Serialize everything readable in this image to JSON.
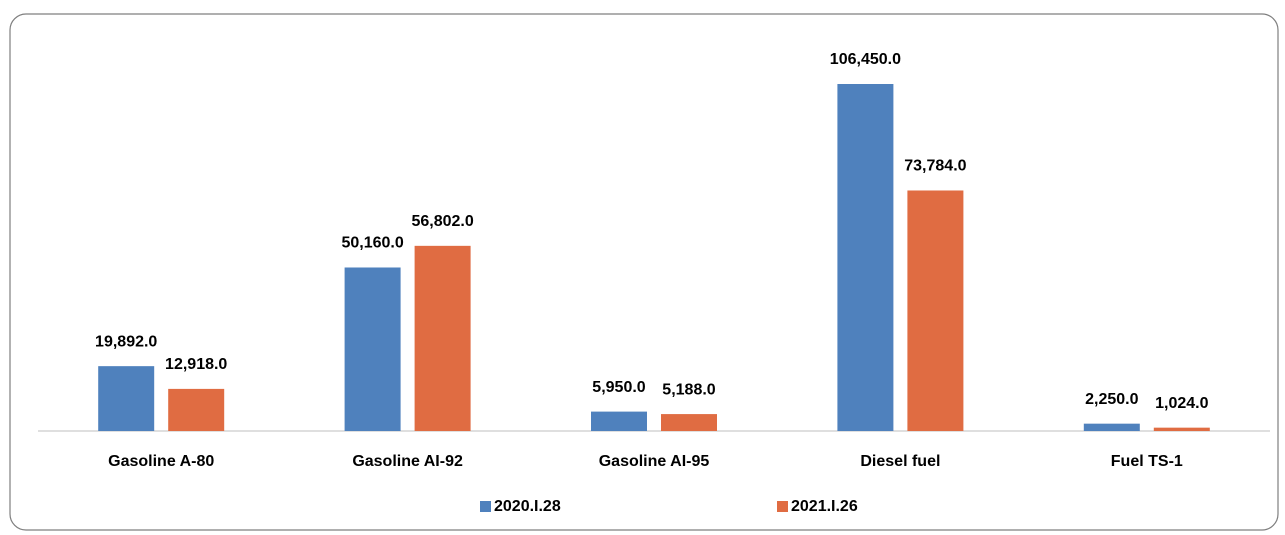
{
  "chart_data": {
    "type": "bar",
    "categories": [
      "Gasoline A-80",
      "Gasoline AI-92",
      "Gasoline AI-95",
      "Diesel fuel",
      "Fuel TS-1"
    ],
    "series": [
      {
        "name": "2020.I.28",
        "color": "#4f81bd",
        "values": [
          19892,
          50160,
          5950,
          106450,
          2250
        ],
        "value_labels": [
          "19,892.0",
          "50,160.0",
          "5,950.0",
          "106,450.0",
          "2,250.0"
        ]
      },
      {
        "name": "2021.I.26",
        "color": "#e06c42",
        "values": [
          12918,
          56802,
          5188,
          73784,
          1024
        ],
        "value_labels": [
          "12,918.0",
          "56,802.0",
          "5,188.0",
          "73,784.0",
          "1,024.0"
        ]
      }
    ],
    "legend": "bottom"
  }
}
